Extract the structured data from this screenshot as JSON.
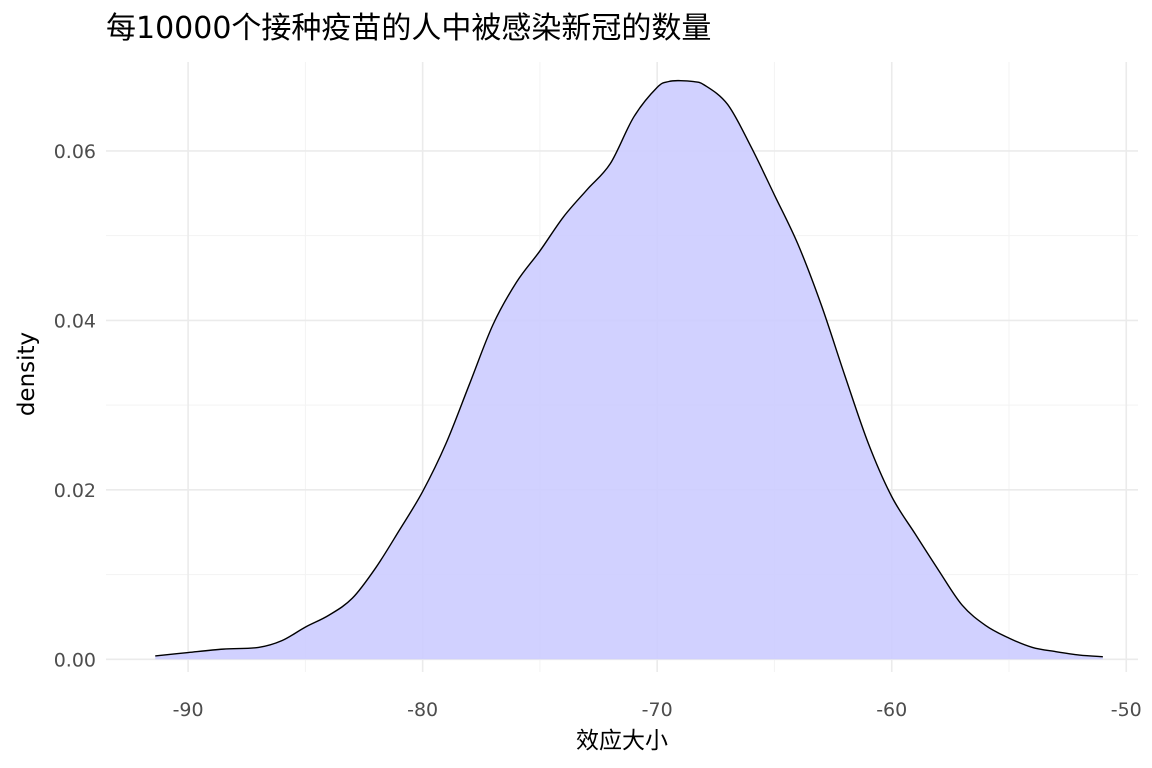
{
  "chart_data": {
    "type": "area",
    "title": "每10000个接种疫苗的人中被感染新冠的数量",
    "xlabel": "效应大小",
    "ylabel": "density",
    "xlim": [
      -93.5,
      -49.5
    ],
    "ylim": [
      -0.0015,
      0.0705
    ],
    "x_ticks": [
      -90,
      -80,
      -70,
      -60,
      -50
    ],
    "x_tick_labels": [
      "-90",
      "-80",
      "-70",
      "-60",
      "-50"
    ],
    "y_ticks": [
      0.0,
      0.02,
      0.04,
      0.06
    ],
    "y_tick_labels": [
      "0.00",
      "0.02",
      "0.04",
      "0.06"
    ],
    "x_minor_ticks": [
      -85,
      -75,
      -65,
      -55
    ],
    "y_minor_ticks": [
      0.01,
      0.03,
      0.05
    ],
    "grid": true,
    "legend": "none",
    "fill_color": "#ccccff",
    "line_color": "#000000",
    "series": [
      {
        "x": [
          -91.4,
          -90,
          -88.5,
          -87,
          -86,
          -85,
          -84,
          -83,
          -82,
          -81,
          -80,
          -79,
          -78,
          -77,
          -76,
          -75,
          -74,
          -73,
          -72,
          -71,
          -70,
          -69.5,
          -69,
          -68.5,
          -68,
          -67,
          -66,
          -65,
          -64,
          -63,
          -62,
          -61,
          -60,
          -59,
          -58,
          -57,
          -56,
          -55,
          -54,
          -53,
          -52,
          -51.0
        ],
        "y": [
          0.0004,
          0.0008,
          0.0012,
          0.0014,
          0.0022,
          0.0038,
          0.0052,
          0.0072,
          0.0108,
          0.0152,
          0.0198,
          0.0255,
          0.0325,
          0.0395,
          0.0445,
          0.0482,
          0.0522,
          0.0554,
          0.0585,
          0.064,
          0.0675,
          0.0682,
          0.0683,
          0.0682,
          0.0678,
          0.0655,
          0.0605,
          0.0548,
          0.049,
          0.0418,
          0.0335,
          0.0255,
          0.0192,
          0.0148,
          0.0105,
          0.0064,
          0.004,
          0.0025,
          0.0014,
          0.0009,
          0.0005,
          0.0003
        ]
      }
    ]
  }
}
